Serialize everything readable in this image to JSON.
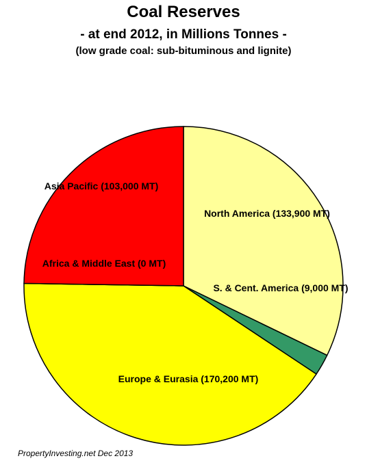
{
  "chart_data": {
    "type": "pie",
    "title": "Coal Reserves",
    "subtitle": "- at end 2012, in Millions  Tonnes -",
    "note": "(low grade coal: sub-bituminous and lignite)",
    "values": [
      133900,
      9000,
      170200,
      0,
      103000
    ],
    "value_labels": [
      "North America (133,900 MT)",
      "S. & Cent. America (9,000 MT)",
      "Europe & Eurasia (170,200 MT)",
      "Africa & Middle East (0 MT)",
      "Asia Pacific (103,000 MT)"
    ],
    "colors": [
      "#ffff99",
      "#339966",
      "#ffff00",
      "#cc0000",
      "#ff0000"
    ],
    "source": "PropertyInvesting.net Dec 2013"
  }
}
